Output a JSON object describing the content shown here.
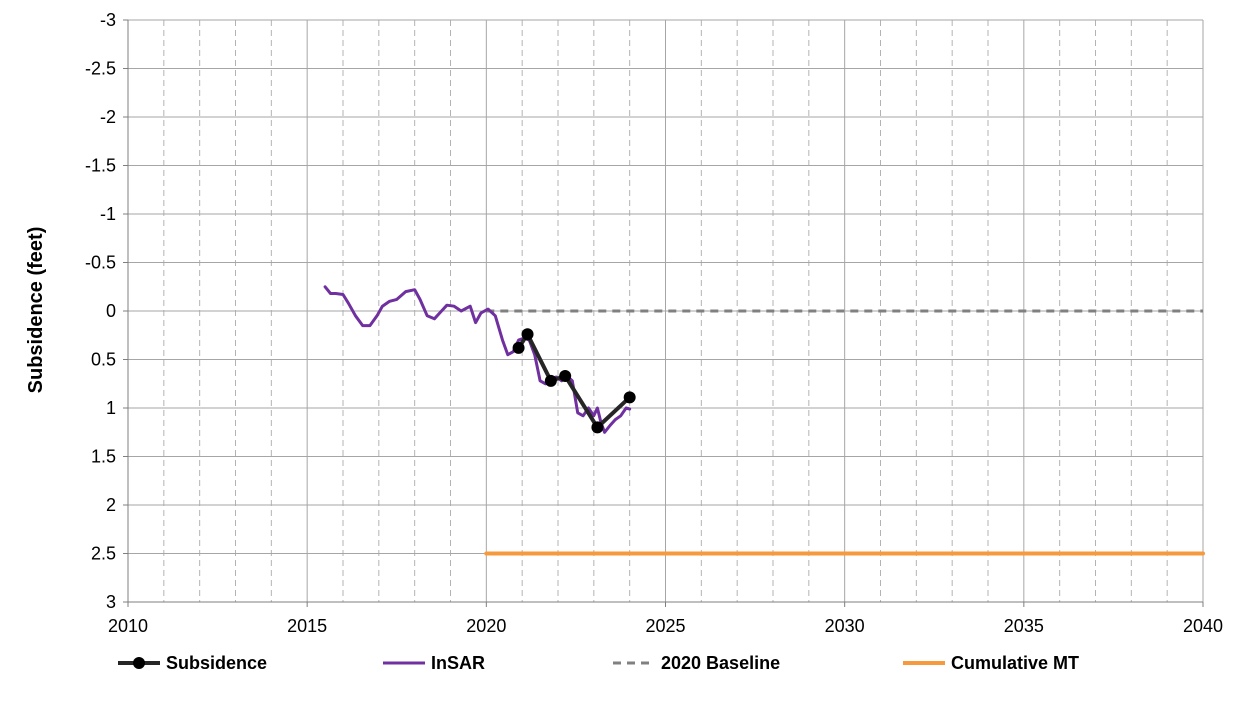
{
  "chart_data": {
    "type": "line",
    "title": "",
    "xlabel": "",
    "ylabel": "Subsidence (feet)",
    "xlim": [
      2010,
      2040
    ],
    "ylim": [
      -3,
      3
    ],
    "y_inverted": true,
    "x_major_ticks": [
      "2010",
      "2015",
      "2020",
      "2025",
      "2030",
      "2035",
      "2040"
    ],
    "y_ticks": [
      "-3",
      "-2.5",
      "-2",
      "-1.5",
      "-1",
      "-0.5",
      "0",
      "0.5",
      "1",
      "1.5",
      "2",
      "2.5",
      "3"
    ],
    "grid": true,
    "minor_x_grid": "dashed",
    "legend_position": "bottom",
    "series": [
      {
        "name": "Subsidence",
        "color": "#262626",
        "style": "line-with-markers",
        "x": [
          2020.9,
          2021.15,
          2021.8,
          2022.2,
          2023.1,
          2024.0
        ],
        "y": [
          0.38,
          0.24,
          0.72,
          0.67,
          1.2,
          0.89
        ]
      },
      {
        "name": "InSAR",
        "color": "#7030a0",
        "style": "line",
        "x": [
          2015.5,
          2015.65,
          2015.8,
          2016.0,
          2016.15,
          2016.35,
          2016.55,
          2016.75,
          2016.95,
          2017.1,
          2017.3,
          2017.5,
          2017.75,
          2018.0,
          2018.15,
          2018.35,
          2018.55,
          2018.7,
          2018.9,
          2019.1,
          2019.3,
          2019.55,
          2019.7,
          2019.85,
          2020.05,
          2020.25,
          2020.45,
          2020.6,
          2020.75,
          2020.9,
          2021.05,
          2021.2,
          2021.35,
          2021.5,
          2021.65,
          2021.8,
          2021.95,
          2022.1,
          2022.25,
          2022.4,
          2022.55,
          2022.7,
          2022.85,
          2023.0,
          2023.1,
          2023.2,
          2023.3,
          2023.45,
          2023.6,
          2023.75,
          2023.9,
          2024.0
        ],
        "y": [
          -0.25,
          -0.18,
          -0.18,
          -0.17,
          -0.08,
          0.05,
          0.15,
          0.15,
          0.05,
          -0.05,
          -0.1,
          -0.12,
          -0.2,
          -0.22,
          -0.12,
          0.05,
          0.08,
          0.02,
          -0.06,
          -0.05,
          0.0,
          -0.05,
          0.12,
          0.02,
          -0.02,
          0.05,
          0.3,
          0.45,
          0.42,
          0.3,
          0.28,
          0.3,
          0.45,
          0.72,
          0.75,
          0.7,
          0.68,
          0.72,
          0.67,
          0.72,
          1.05,
          1.08,
          1.0,
          1.08,
          1.0,
          1.15,
          1.25,
          1.18,
          1.12,
          1.08,
          1.0,
          1.01
        ]
      },
      {
        "name": "2020 Baseline",
        "color": "#808080",
        "style": "dashed",
        "x": [
          2020.0,
          2040.0
        ],
        "y": [
          0,
          0
        ]
      },
      {
        "name": "Cumulative MT",
        "color": "#f79a3e",
        "style": "line",
        "x": [
          2020.0,
          2040.0
        ],
        "y": [
          2.5,
          2.5
        ]
      }
    ]
  }
}
